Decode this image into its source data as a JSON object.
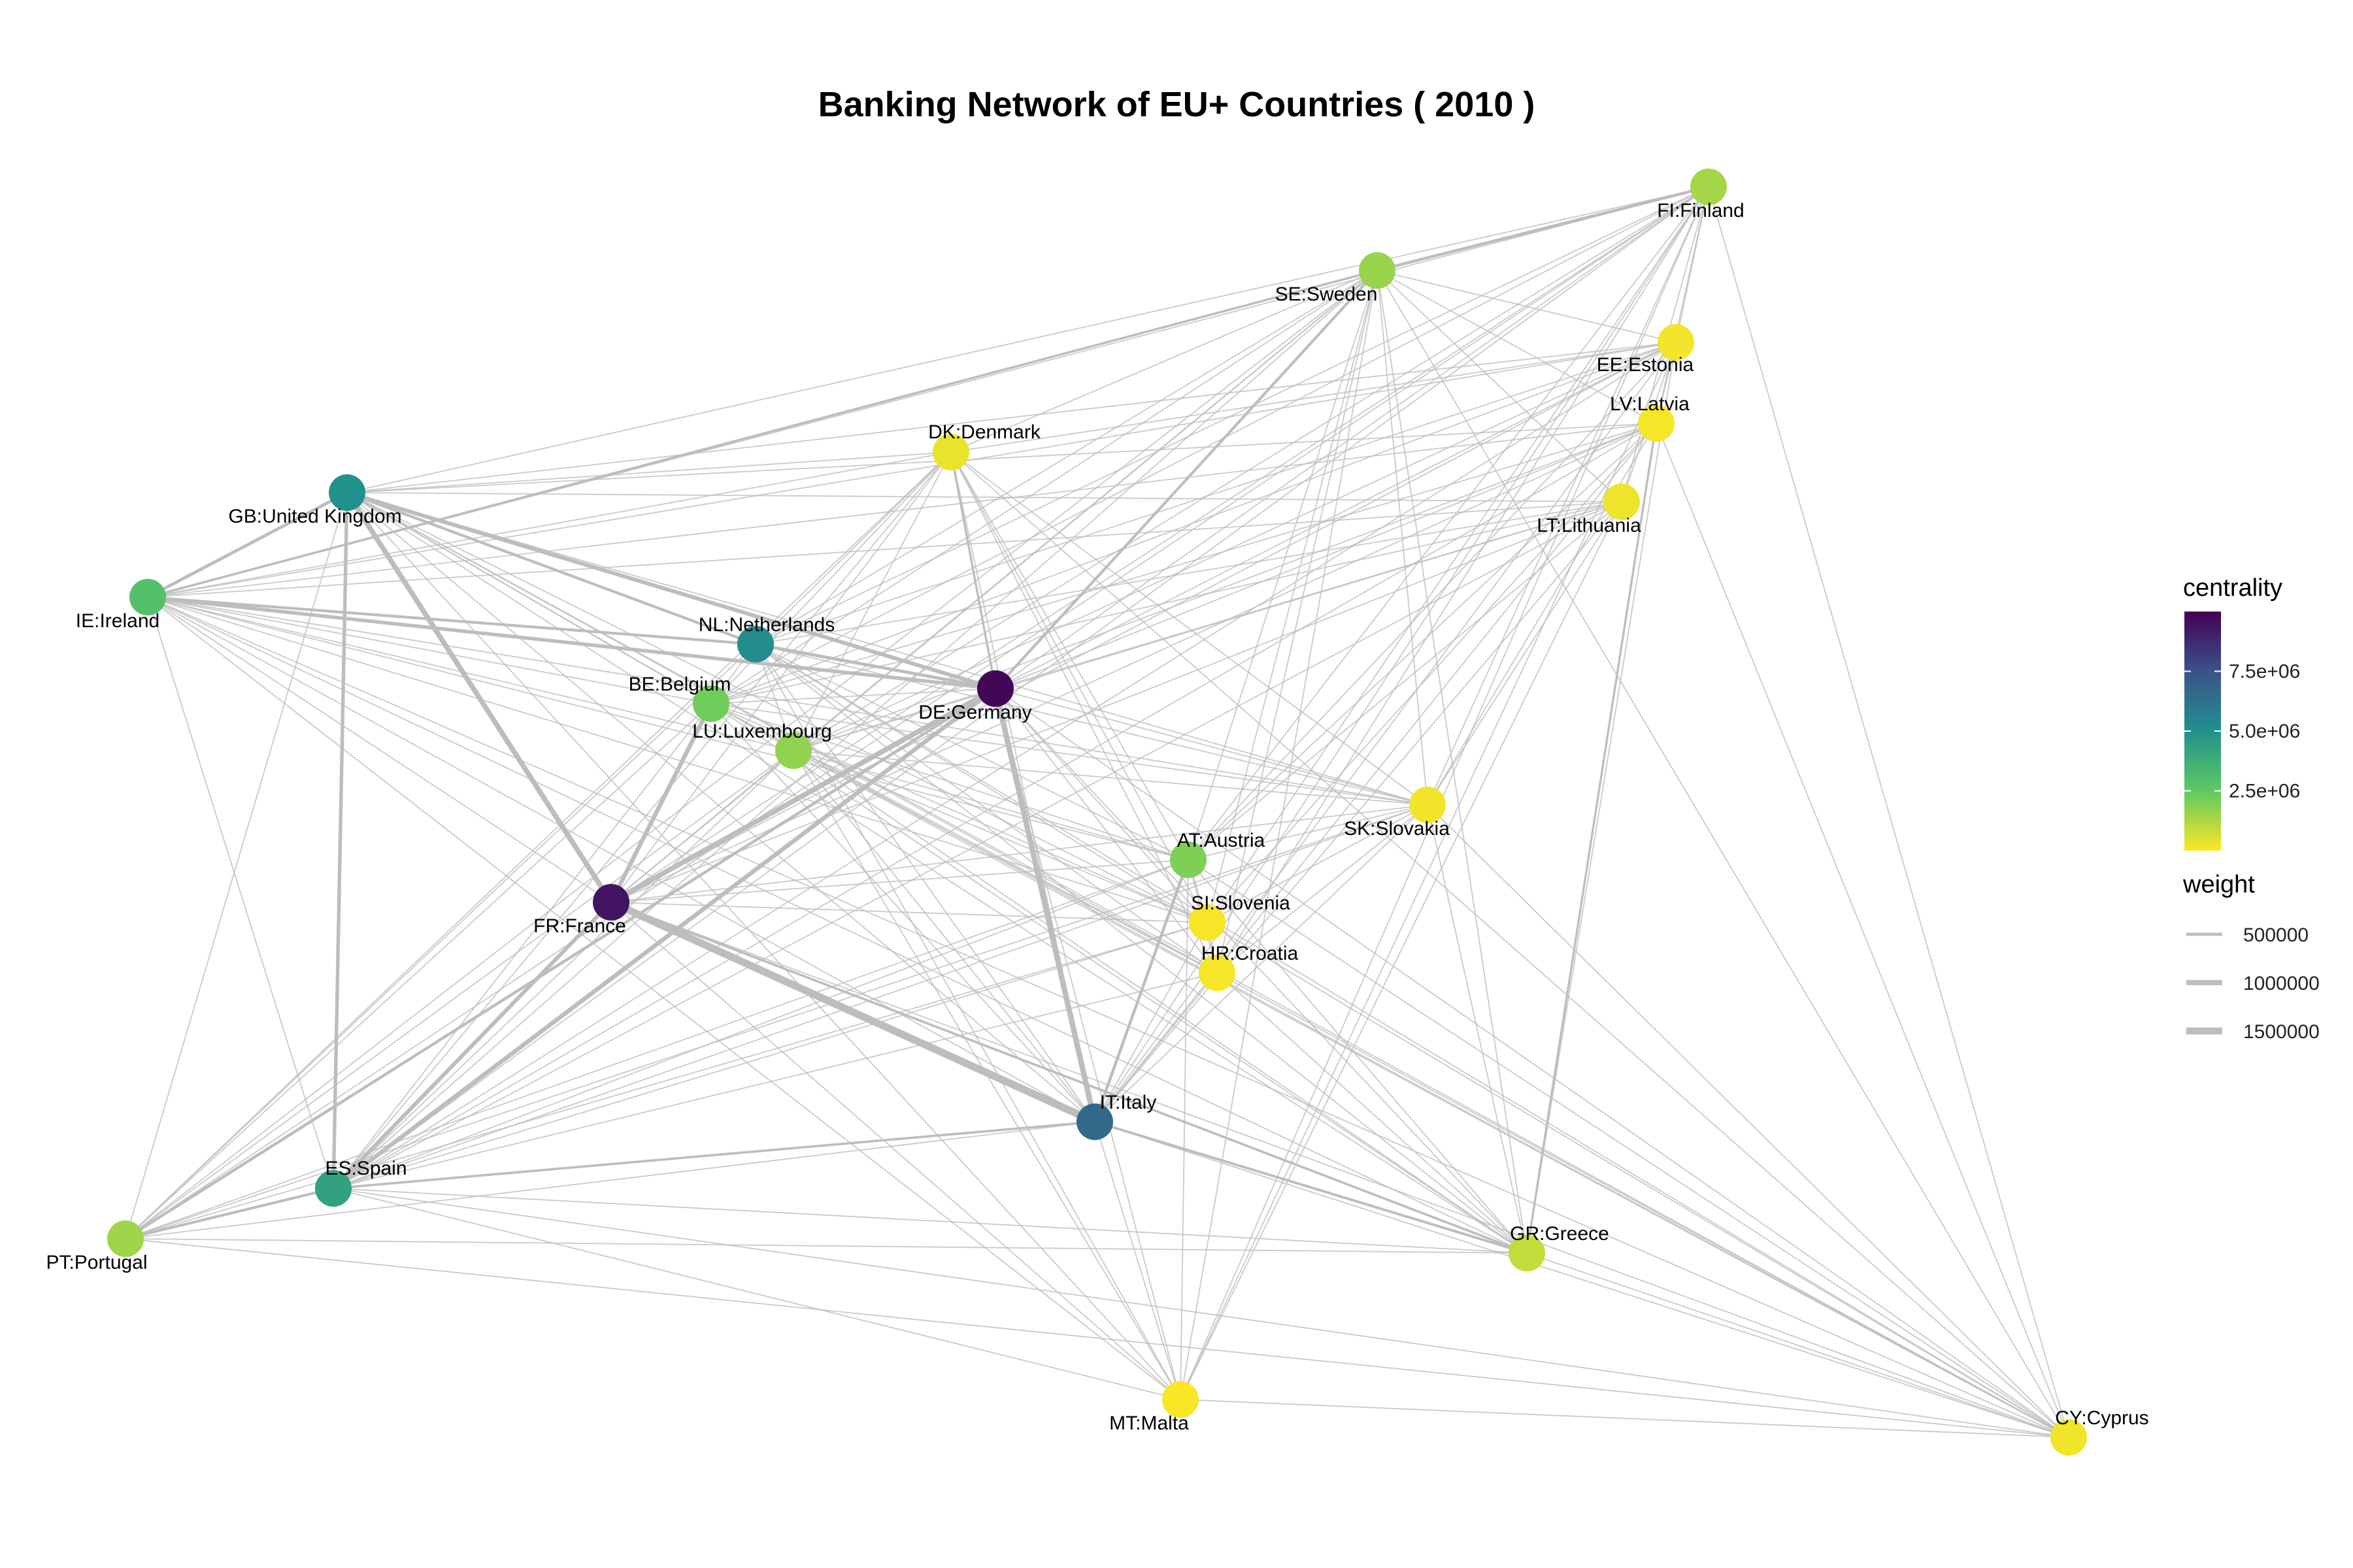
{
  "title": "Banking Network of EU+ Countries ( 2010 )",
  "colors": {
    "edge": "#bdbdbd",
    "viridis": [
      "#440154",
      "#3b528b",
      "#21918c",
      "#5ec962",
      "#fde725"
    ]
  },
  "nodes": [
    {
      "id": "FI",
      "label": "FI:Finland",
      "centrality": 1400000
    },
    {
      "id": "SE",
      "label": "SE:Sweden",
      "centrality": 1600000
    },
    {
      "id": "EE",
      "label": "EE:Estonia",
      "centrality": 150000
    },
    {
      "id": "LV",
      "label": "LV:Latvia",
      "centrality": 120000
    },
    {
      "id": "DK",
      "label": "DK:Denmark",
      "centrality": 300000
    },
    {
      "id": "LT",
      "label": "LT:Lithuania",
      "centrality": 250000
    },
    {
      "id": "GB",
      "label": "GB:United Kingdom",
      "centrality": 5000000
    },
    {
      "id": "IE",
      "label": "IE:Ireland",
      "centrality": 2900000
    },
    {
      "id": "NL",
      "label": "NL:Netherlands",
      "centrality": 5200000
    },
    {
      "id": "BE",
      "label": "BE:Belgium",
      "centrality": 2200000
    },
    {
      "id": "DE",
      "label": "DE:Germany",
      "centrality": 9800000
    },
    {
      "id": "LU",
      "label": "LU:Luxembourg",
      "centrality": 1700000
    },
    {
      "id": "SK",
      "label": "SK:Slovakia",
      "centrality": 180000
    },
    {
      "id": "AT",
      "label": "AT:Austria",
      "centrality": 2000000
    },
    {
      "id": "FR",
      "label": "FR:France",
      "centrality": 9400000
    },
    {
      "id": "SI",
      "label": "SI:Slovenia",
      "centrality": 100000
    },
    {
      "id": "HR",
      "label": "HR:Croatia",
      "centrality": 120000
    },
    {
      "id": "IT",
      "label": "IT:Italy",
      "centrality": 6600000
    },
    {
      "id": "ES",
      "label": "ES:Spain",
      "centrality": 4300000
    },
    {
      "id": "PT",
      "label": "PT:Portugal",
      "centrality": 1500000
    },
    {
      "id": "GR",
      "label": "GR:Greece",
      "centrality": 900000
    },
    {
      "id": "MT",
      "label": "MT:Malta",
      "centrality": 80000
    },
    {
      "id": "CY",
      "label": "CY:Cyprus",
      "centrality": 200000
    }
  ],
  "heavy_edges": [
    [
      "FR",
      "IT",
      1600000
    ],
    [
      "DE",
      "IT",
      1100000
    ],
    [
      "GB",
      "FR",
      1000000
    ],
    [
      "DE",
      "FR",
      1000000
    ],
    [
      "DE",
      "ES",
      800000
    ],
    [
      "FR",
      "ES",
      700000
    ],
    [
      "GB",
      "DE",
      700000
    ],
    [
      "IE",
      "DE",
      600000
    ],
    [
      "GB",
      "ES",
      600000
    ],
    [
      "BE",
      "FR",
      800000
    ],
    [
      "FR",
      "BE",
      600000
    ],
    [
      "IE",
      "GB",
      500000
    ],
    [
      "NL",
      "DE",
      500000
    ],
    [
      "DE",
      "PT",
      450000
    ],
    [
      "IT",
      "AT",
      450000
    ],
    [
      "SE",
      "FI",
      450000
    ],
    [
      "GB",
      "NL",
      400000
    ],
    [
      "IE",
      "NL",
      400000
    ],
    [
      "SE",
      "DE",
      400000
    ],
    [
      "ES",
      "PT",
      400000
    ],
    [
      "IT",
      "GR",
      350000
    ],
    [
      "FR",
      "GR",
      300000
    ],
    [
      "LV",
      "GR",
      250000
    ],
    [
      "IE",
      "SE",
      300000
    ],
    [
      "ES",
      "IT",
      300000
    ],
    [
      "DE",
      "DK",
      250000
    ]
  ],
  "legend": {
    "centrality": {
      "title": "centrality",
      "min": 0,
      "max": 10000000,
      "ticks": [
        {
          "value": 2500000,
          "label": "2.5e+06"
        },
        {
          "value": 5000000,
          "label": "5.0e+06"
        },
        {
          "value": 7500000,
          "label": "7.5e+06"
        }
      ]
    },
    "weight": {
      "title": "weight",
      "items": [
        {
          "value": 500000,
          "label": "500000"
        },
        {
          "value": 1000000,
          "label": "1000000"
        },
        {
          "value": 1500000,
          "label": "1500000"
        }
      ]
    }
  }
}
